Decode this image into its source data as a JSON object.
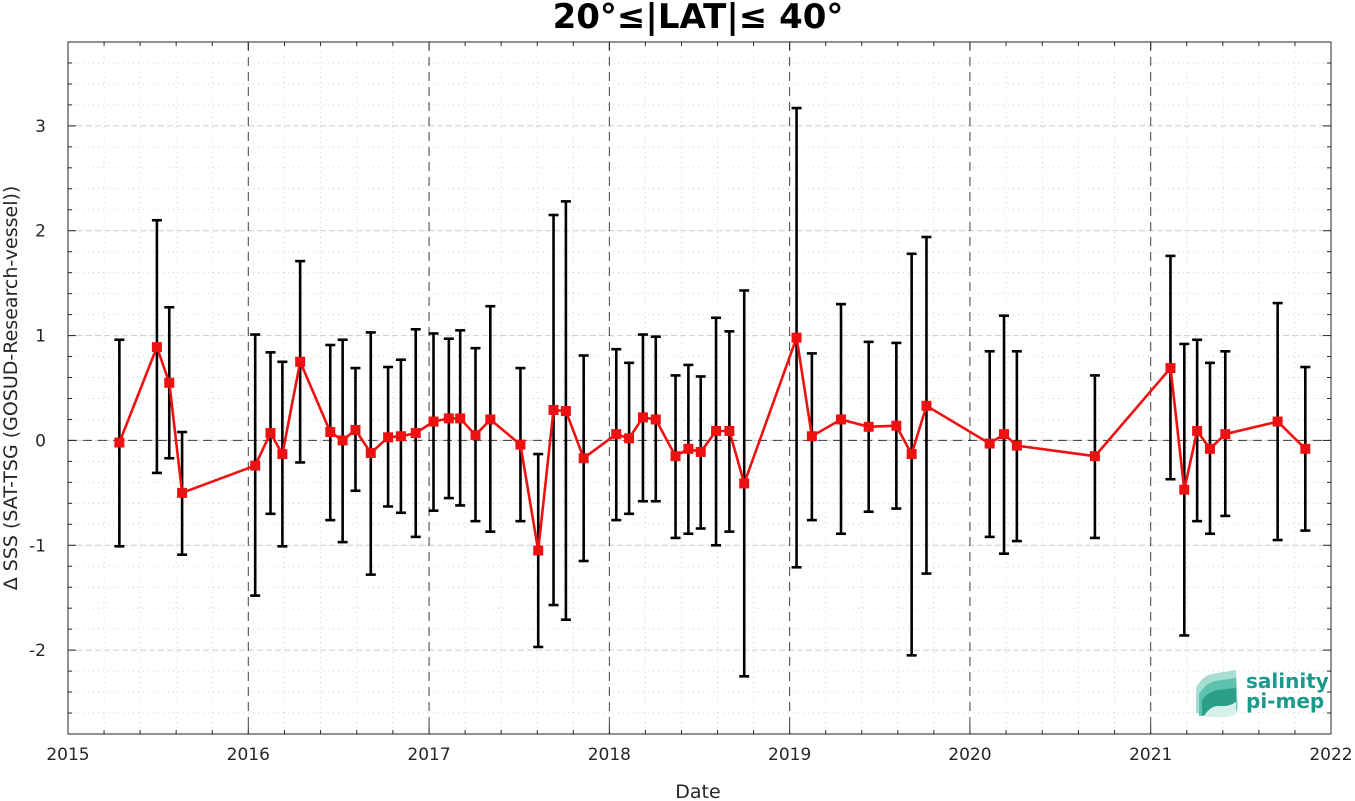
{
  "chart_data": {
    "type": "line",
    "title": "20°≤|LAT|≤ 40°",
    "xlabel": "Date",
    "ylabel": "Δ SSS (SAT-TSG (GOSUD-Research-vessel))",
    "xlim": [
      "2015-01-01",
      "2022-01-01"
    ],
    "ylim": [
      -2.8,
      3.8
    ],
    "x_ticks": [
      "2015",
      "2016",
      "2017",
      "2018",
      "2019",
      "2020",
      "2021",
      "2022"
    ],
    "y_ticks": [
      "-2",
      "-1",
      "0",
      "1",
      "2",
      "3"
    ],
    "year_lines": [
      "2016-01-01",
      "2017-01-01",
      "2018-01-01",
      "2019-01-01",
      "2020-01-01",
      "2021-01-01"
    ],
    "zero_line": 0,
    "grid": true,
    "colors": {
      "line": "#ee1111",
      "errorbar": "#000000",
      "grid": "#c8c8c8"
    },
    "series": [
      {
        "marker": "square",
        "points": [
          {
            "date": "2015-04-15",
            "mean": -0.02,
            "lo": -1.01,
            "hi": 0.96
          },
          {
            "date": "2015-06-30",
            "mean": 0.89,
            "lo": -0.31,
            "hi": 2.1
          },
          {
            "date": "2015-07-25",
            "mean": 0.55,
            "lo": -0.17,
            "hi": 1.27
          },
          {
            "date": "2015-08-20",
            "mean": -0.5,
            "lo": -1.09,
            "hi": 0.08
          },
          {
            "date": "2016-01-15",
            "mean": -0.24,
            "lo": -1.48,
            "hi": 1.01
          },
          {
            "date": "2016-02-15",
            "mean": 0.07,
            "lo": -0.7,
            "hi": 0.84
          },
          {
            "date": "2016-03-10",
            "mean": -0.13,
            "lo": -1.01,
            "hi": 0.75
          },
          {
            "date": "2016-04-15",
            "mean": 0.75,
            "lo": -0.21,
            "hi": 1.71
          },
          {
            "date": "2016-06-15",
            "mean": 0.08,
            "lo": -0.76,
            "hi": 0.91
          },
          {
            "date": "2016-07-10",
            "mean": 0.0,
            "lo": -0.97,
            "hi": 0.96
          },
          {
            "date": "2016-08-05",
            "mean": 0.1,
            "lo": -0.48,
            "hi": 0.69
          },
          {
            "date": "2016-09-05",
            "mean": -0.12,
            "lo": -1.28,
            "hi": 1.03
          },
          {
            "date": "2016-10-10",
            "mean": 0.03,
            "lo": -0.63,
            "hi": 0.7
          },
          {
            "date": "2016-11-05",
            "mean": 0.04,
            "lo": -0.69,
            "hi": 0.77
          },
          {
            "date": "2016-12-05",
            "mean": 0.07,
            "lo": -0.92,
            "hi": 1.06
          },
          {
            "date": "2017-01-10",
            "mean": 0.18,
            "lo": -0.67,
            "hi": 1.02
          },
          {
            "date": "2017-02-10",
            "mean": 0.21,
            "lo": -0.55,
            "hi": 0.97
          },
          {
            "date": "2017-03-05",
            "mean": 0.21,
            "lo": -0.62,
            "hi": 1.05
          },
          {
            "date": "2017-04-05",
            "mean": 0.05,
            "lo": -0.77,
            "hi": 0.88
          },
          {
            "date": "2017-05-05",
            "mean": 0.2,
            "lo": -0.87,
            "hi": 1.28
          },
          {
            "date": "2017-07-05",
            "mean": -0.04,
            "lo": -0.77,
            "hi": 0.69
          },
          {
            "date": "2017-08-10",
            "mean": -1.05,
            "lo": -1.97,
            "hi": -0.13
          },
          {
            "date": "2017-09-10",
            "mean": 0.29,
            "lo": -1.57,
            "hi": 2.15
          },
          {
            "date": "2017-10-05",
            "mean": 0.28,
            "lo": -1.71,
            "hi": 2.28
          },
          {
            "date": "2017-11-10",
            "mean": -0.17,
            "lo": -1.15,
            "hi": 0.81
          },
          {
            "date": "2018-01-15",
            "mean": 0.06,
            "lo": -0.76,
            "hi": 0.87
          },
          {
            "date": "2018-02-10",
            "mean": 0.02,
            "lo": -0.7,
            "hi": 0.74
          },
          {
            "date": "2018-03-10",
            "mean": 0.22,
            "lo": -0.58,
            "hi": 1.01
          },
          {
            "date": "2018-04-05",
            "mean": 0.2,
            "lo": -0.58,
            "hi": 0.99
          },
          {
            "date": "2018-05-15",
            "mean": -0.15,
            "lo": -0.93,
            "hi": 0.62
          },
          {
            "date": "2018-06-10",
            "mean": -0.08,
            "lo": -0.89,
            "hi": 0.72
          },
          {
            "date": "2018-07-05",
            "mean": -0.11,
            "lo": -0.84,
            "hi": 0.61
          },
          {
            "date": "2018-08-05",
            "mean": 0.09,
            "lo": -1.0,
            "hi": 1.17
          },
          {
            "date": "2018-09-01",
            "mean": 0.09,
            "lo": -0.87,
            "hi": 1.04
          },
          {
            "date": "2018-10-01",
            "mean": -0.41,
            "lo": -2.25,
            "hi": 1.43
          },
          {
            "date": "2019-01-15",
            "mean": 0.98,
            "lo": -1.21,
            "hi": 3.17
          },
          {
            "date": "2019-02-15",
            "mean": 0.04,
            "lo": -0.76,
            "hi": 0.83
          },
          {
            "date": "2019-04-15",
            "mean": 0.2,
            "lo": -0.89,
            "hi": 1.3
          },
          {
            "date": "2019-06-10",
            "mean": 0.13,
            "lo": -0.68,
            "hi": 0.94
          },
          {
            "date": "2019-08-05",
            "mean": 0.14,
            "lo": -0.65,
            "hi": 0.93
          },
          {
            "date": "2019-09-05",
            "mean": -0.13,
            "lo": -2.05,
            "hi": 1.78
          },
          {
            "date": "2019-10-05",
            "mean": 0.33,
            "lo": -1.27,
            "hi": 1.94
          },
          {
            "date": "2020-02-10",
            "mean": -0.03,
            "lo": -0.92,
            "hi": 0.85
          },
          {
            "date": "2020-03-10",
            "mean": 0.06,
            "lo": -1.08,
            "hi": 1.19
          },
          {
            "date": "2020-04-05",
            "mean": -0.05,
            "lo": -0.96,
            "hi": 0.85
          },
          {
            "date": "2020-09-10",
            "mean": -0.15,
            "lo": -0.93,
            "hi": 0.62
          },
          {
            "date": "2021-02-10",
            "mean": 0.69,
            "lo": -0.37,
            "hi": 1.76
          },
          {
            "date": "2021-03-10",
            "mean": -0.47,
            "lo": -1.86,
            "hi": 0.92
          },
          {
            "date": "2021-04-05",
            "mean": 0.09,
            "lo": -0.77,
            "hi": 0.96
          },
          {
            "date": "2021-05-01",
            "mean": -0.08,
            "lo": -0.89,
            "hi": 0.74
          },
          {
            "date": "2021-06-01",
            "mean": 0.06,
            "lo": -0.72,
            "hi": 0.85
          },
          {
            "date": "2021-09-15",
            "mean": 0.18,
            "lo": -0.95,
            "hi": 1.31
          },
          {
            "date": "2021-11-10",
            "mean": -0.08,
            "lo": -0.86,
            "hi": 0.7
          }
        ]
      }
    ]
  },
  "logo": {
    "line1": "salinity",
    "line2": "pi-mep"
  }
}
